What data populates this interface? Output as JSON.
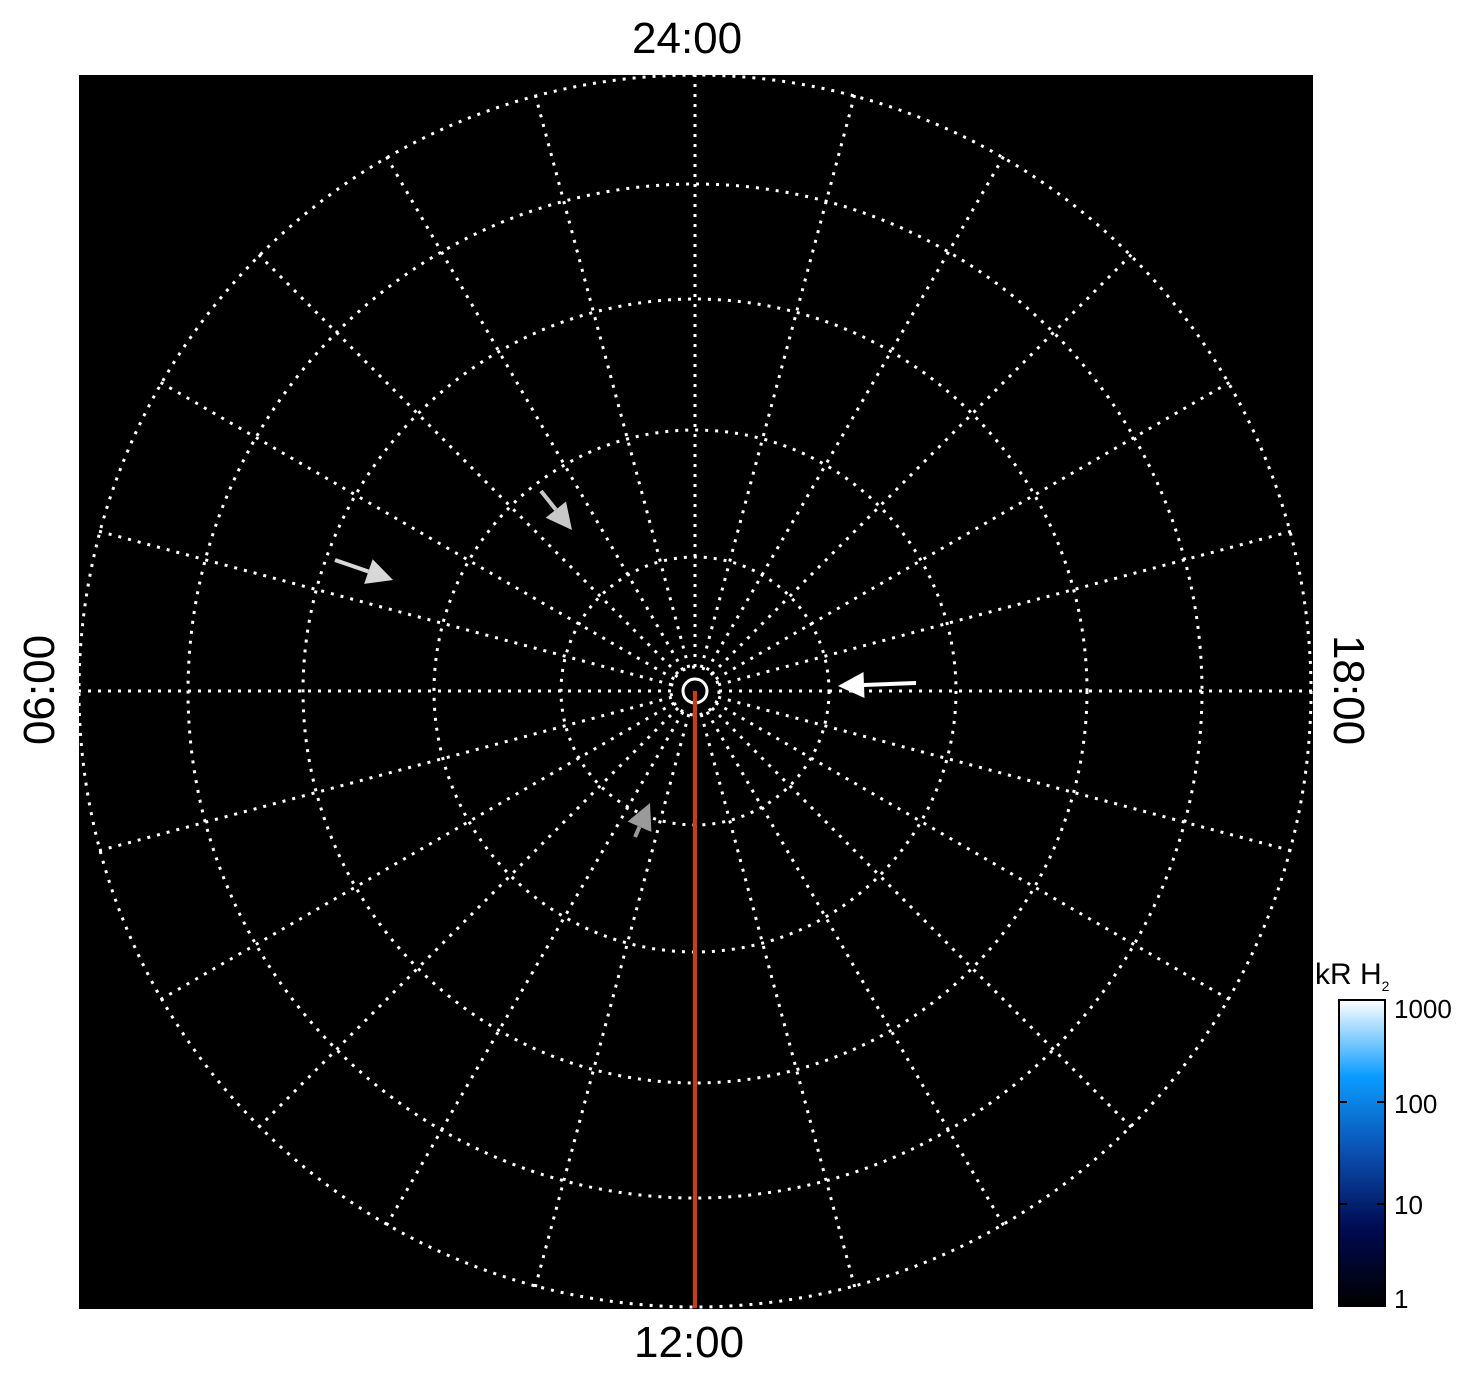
{
  "chart_data": {
    "type": "polar-map",
    "local_time_labels": {
      "top": "24:00",
      "bottom": "12:00",
      "left": "06:00",
      "right": "18:00"
    },
    "grid": true,
    "grid_style": "dotted",
    "meridian_spacing_hours": 1,
    "latitude_rings": 5,
    "background_color": "#000000",
    "grid_color": "#ffffff",
    "reference_line": {
      "local_time": "12:00",
      "color": "#d03a10"
    },
    "arrows": [
      {
        "color": "#d8d8d8"
      },
      {
        "color": "#c8c8c8"
      },
      {
        "color": "#ffffff"
      },
      {
        "color": "#9a9a9a"
      }
    ],
    "colorbar": {
      "title": "kR H",
      "title_subscript": "2",
      "scale": "log",
      "range": [
        1,
        1000
      ],
      "tick_labels": [
        "1",
        "10",
        "100",
        "1000"
      ],
      "colors": [
        "#000000",
        "#000a50",
        "#0a4fb0",
        "#0a9cff",
        "#ffffff"
      ]
    }
  }
}
